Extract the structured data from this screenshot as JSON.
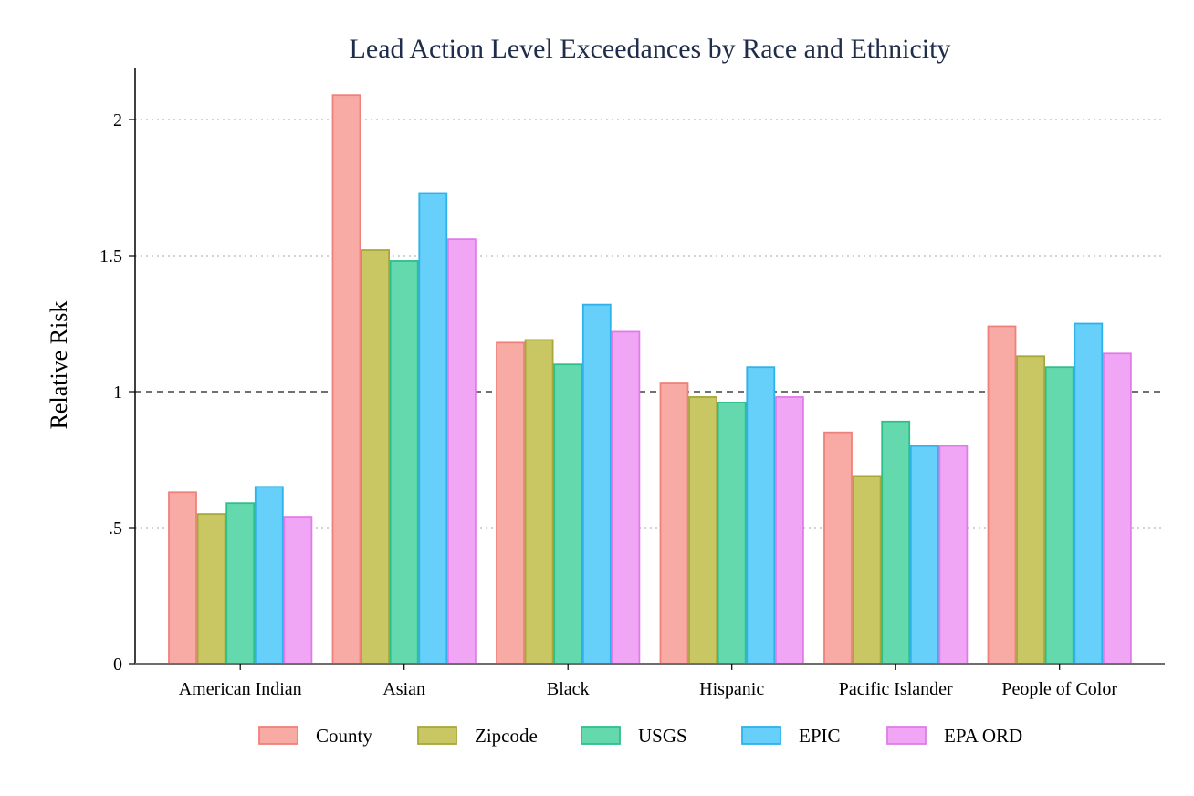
{
  "chart_data": {
    "type": "bar",
    "title": "Lead Action Level Exceedances by Race and Ethnicity",
    "xlabel": "",
    "ylabel": "Relative Risk",
    "ylim": [
      0,
      2.2
    ],
    "yticks": [
      0,
      0.5,
      1,
      1.5,
      2
    ],
    "ytick_labels": [
      "0",
      ".5",
      "1",
      "1.5",
      "2"
    ],
    "reference_line": 1,
    "grid": "horizontal dotted",
    "legend_position": "bottom",
    "categories": [
      "American Indian",
      "Asian",
      "Black",
      "Hispanic",
      "Pacific Islander",
      "People of Color"
    ],
    "series": [
      {
        "name": "County",
        "fill": "#f8aba4",
        "stroke": "#f0807a",
        "values": [
          0.63,
          2.09,
          1.18,
          1.03,
          0.85,
          1.24
        ]
      },
      {
        "name": "Zipcode",
        "fill": "#c8c764",
        "stroke": "#a8a83a",
        "values": [
          0.55,
          1.52,
          1.19,
          0.98,
          0.69,
          1.13
        ]
      },
      {
        "name": "USGS",
        "fill": "#64d9ae",
        "stroke": "#2fbf8a",
        "values": [
          0.59,
          1.48,
          1.1,
          0.96,
          0.89,
          1.09
        ]
      },
      {
        "name": "EPIC",
        "fill": "#66cffa",
        "stroke": "#2eb2ea",
        "values": [
          0.65,
          1.73,
          1.32,
          1.09,
          0.8,
          1.25
        ]
      },
      {
        "name": "EPA ORD",
        "fill": "#f0a6f4",
        "stroke": "#e07ce8",
        "values": [
          0.54,
          1.56,
          1.22,
          0.98,
          0.8,
          1.14
        ]
      }
    ]
  }
}
